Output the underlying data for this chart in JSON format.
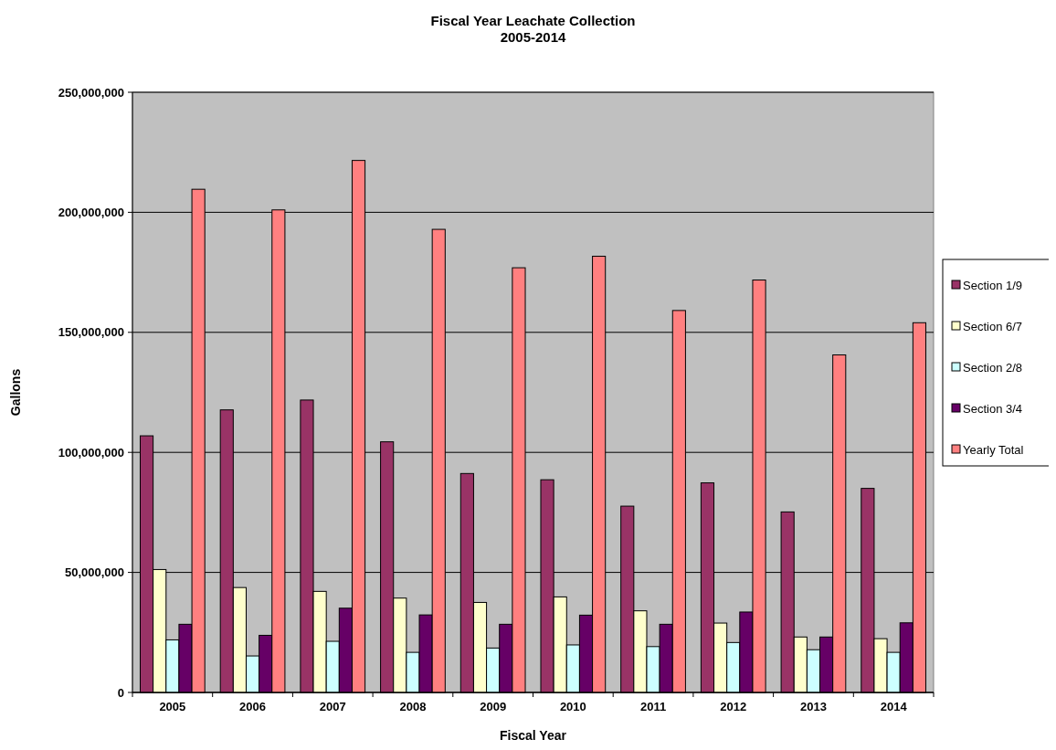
{
  "chart_data": {
    "type": "bar",
    "title": "Fiscal Year Leachate Collection",
    "subtitle": "2005-2014",
    "xlabel": "Fiscal Year",
    "ylabel": "Gallons",
    "categories": [
      "2005",
      "2006",
      "2007",
      "2008",
      "2009",
      "2010",
      "2011",
      "2012",
      "2013",
      "2014"
    ],
    "series": [
      {
        "name": "Section 1/9",
        "color": "#993366",
        "values": [
          106900000,
          117700000,
          121800000,
          104400000,
          91200000,
          88600000,
          77600000,
          87300000,
          75200000,
          85000000
        ]
      },
      {
        "name": "Section 6/7",
        "color": "#ffffcc",
        "values": [
          51200000,
          43700000,
          42100000,
          39300000,
          37500000,
          39800000,
          34000000,
          28900000,
          23100000,
          22400000
        ]
      },
      {
        "name": "Section 2/8",
        "color": "#ccffff",
        "values": [
          21900000,
          15200000,
          21300000,
          16700000,
          18500000,
          19800000,
          19100000,
          20800000,
          17800000,
          16700000
        ]
      },
      {
        "name": "Section 3/4",
        "color": "#660066",
        "values": [
          28400000,
          23800000,
          35100000,
          32300000,
          28400000,
          32200000,
          28400000,
          33500000,
          23100000,
          29000000
        ]
      },
      {
        "name": "Yearly Total",
        "color": "#ff8080",
        "values": [
          209600000,
          201000000,
          221600000,
          192900000,
          176900000,
          181700000,
          159100000,
          171800000,
          140600000,
          154000000
        ]
      }
    ],
    "ylim": [
      0,
      250000000
    ],
    "yticks": [
      {
        "value": 0,
        "label": "0"
      },
      {
        "value": 50000000,
        "label": "50,000,000"
      },
      {
        "value": 100000000,
        "label": "100,000,000"
      },
      {
        "value": 150000000,
        "label": "150,000,000"
      },
      {
        "value": 200000000,
        "label": "200,000,000"
      },
      {
        "value": 250000000,
        "label": "250,000,000"
      }
    ],
    "grid": "y",
    "legend": "right"
  }
}
